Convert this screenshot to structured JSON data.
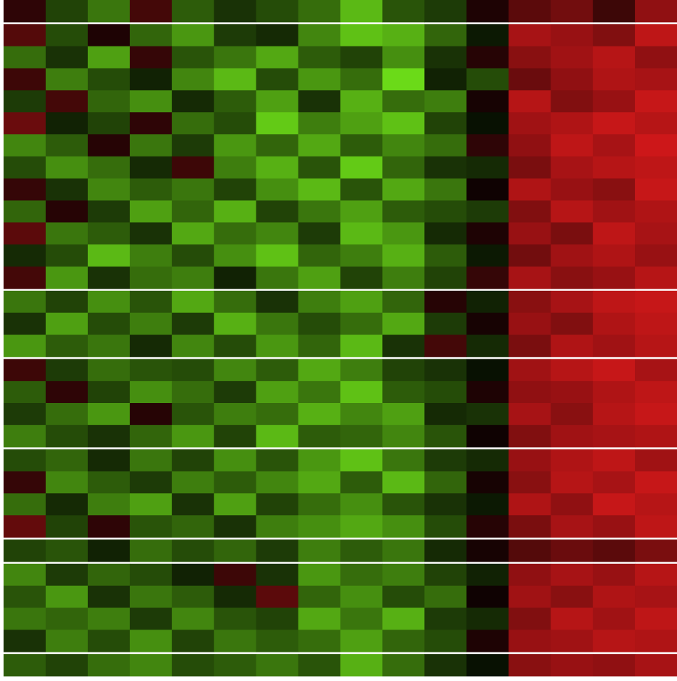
{
  "chart_data": {
    "type": "heatmap",
    "vlim": [
      -3,
      3
    ],
    "colors": {
      "low": "#7cfc1c",
      "mid": "#000000",
      "high": "#e41a1c"
    },
    "groups": [
      {
        "rows": [
          [
            0.6,
            -0.8,
            -1.4,
            0.9,
            -1.1,
            -0.6,
            -0.9,
            -1.3,
            -2.2,
            -1.0,
            -0.7,
            0.4,
            1.2,
            1.5,
            0.8,
            1.9
          ]
        ]
      },
      {
        "rows": [
          [
            1.1,
            -0.9,
            0.4,
            -1.2,
            -1.8,
            -0.7,
            -0.5,
            -1.6,
            -2.3,
            -2.1,
            -1.2,
            -0.3,
            2.2,
            2.0,
            1.7,
            2.5
          ],
          [
            -1.3,
            -0.6,
            -1.9,
            0.7,
            -1.0,
            -1.4,
            -2.0,
            -1.1,
            -0.8,
            -1.7,
            -0.6,
            0.5,
            1.8,
            2.1,
            2.4,
            1.9
          ],
          [
            0.8,
            -1.5,
            -0.9,
            -0.4,
            -1.6,
            -2.2,
            -0.9,
            -1.8,
            -1.3,
            -2.6,
            -0.4,
            -0.9,
            1.4,
            1.9,
            2.3,
            2.2
          ],
          [
            -0.7,
            0.9,
            -1.2,
            -1.7,
            -0.5,
            -1.1,
            -1.9,
            -0.6,
            -2.1,
            -1.3,
            -1.5,
            0.3,
            2.4,
            1.7,
            2.0,
            2.6
          ],
          [
            1.4,
            -0.4,
            -0.8,
            0.6,
            -1.3,
            -0.9,
            -2.4,
            -1.5,
            -1.9,
            -2.3,
            -0.8,
            -0.2,
            2.1,
            2.3,
            2.6,
            2.4
          ],
          [
            -1.6,
            -1.1,
            0.5,
            -1.4,
            -0.7,
            -1.8,
            -1.2,
            -2.0,
            -1.1,
            -1.6,
            -1.3,
            0.6,
            1.9,
            2.5,
            2.2,
            2.7
          ],
          [
            -0.9,
            -1.7,
            -1.3,
            -0.5,
            0.8,
            -1.5,
            -2.1,
            -1.0,
            -2.4,
            -1.2,
            -0.6,
            -0.5,
            1.6,
            2.2,
            2.4,
            2.5
          ],
          [
            0.7,
            -0.6,
            -1.6,
            -1.1,
            -1.4,
            -0.8,
            -1.7,
            -2.2,
            -1.0,
            -2.0,
            -1.4,
            0.2,
            2.3,
            2.0,
            1.8,
            2.6
          ],
          [
            -1.2,
            0.5,
            -0.7,
            -1.9,
            -1.2,
            -2.1,
            -0.8,
            -1.4,
            -1.9,
            -1.1,
            -0.9,
            -0.7,
            1.7,
            2.4,
            2.1,
            2.3
          ],
          [
            1.2,
            -1.4,
            -1.1,
            -0.6,
            -2.0,
            -1.3,
            -1.6,
            -0.7,
            -2.2,
            -1.8,
            -0.5,
            0.4,
            2.0,
            1.6,
            2.5,
            2.2
          ],
          [
            -0.5,
            -0.9,
            -2.2,
            -1.5,
            -0.9,
            -1.7,
            -2.3,
            -1.2,
            -1.5,
            -2.1,
            -1.1,
            -0.3,
            1.5,
            2.1,
            2.3,
            2.0
          ],
          [
            0.9,
            -1.8,
            -0.6,
            -1.3,
            -1.5,
            -0.4,
            -1.4,
            -1.9,
            -0.8,
            -1.5,
            -0.8,
            0.7,
            2.2,
            1.8,
            2.0,
            2.4
          ]
        ]
      },
      {
        "rows": [
          [
            -1.4,
            -0.8,
            -1.7,
            -1.0,
            -2.0,
            -1.3,
            -0.6,
            -1.5,
            -1.9,
            -1.2,
            0.5,
            -0.4,
            1.8,
            2.2,
            2.5,
            2.6
          ],
          [
            -0.6,
            -1.9,
            -0.9,
            -1.5,
            -0.7,
            -2.1,
            -1.4,
            -0.9,
            -1.3,
            -2.0,
            -0.7,
            0.3,
            2.0,
            1.7,
            2.3,
            2.5
          ],
          [
            -1.8,
            -1.1,
            -1.4,
            -0.5,
            -1.6,
            -0.9,
            -1.8,
            -1.2,
            -2.2,
            -0.6,
            0.9,
            -0.5,
            1.6,
            2.3,
            2.1,
            2.4
          ]
        ]
      },
      {
        "rows": [
          [
            0.8,
            -0.7,
            -1.3,
            -1.0,
            -0.9,
            -1.6,
            -1.1,
            -2.0,
            -1.5,
            -0.8,
            -0.6,
            -0.2,
            2.1,
            2.4,
            2.6,
            2.2
          ],
          [
            -1.1,
            0.6,
            -0.8,
            -1.7,
            -1.3,
            -0.7,
            -1.9,
            -1.4,
            -2.3,
            -1.1,
            -0.9,
            0.4,
            1.9,
            2.0,
            2.3,
            2.5
          ],
          [
            -0.7,
            -1.3,
            -1.8,
            0.5,
            -1.0,
            -1.5,
            -1.3,
            -2.1,
            -1.6,
            -1.9,
            -0.5,
            -0.6,
            2.2,
            1.8,
            2.4,
            2.6
          ],
          [
            -1.5,
            -0.9,
            -0.6,
            -1.2,
            -1.8,
            -0.8,
            -2.2,
            -1.1,
            -1.2,
            -1.6,
            -1.0,
            0.2,
            1.7,
            2.1,
            2.2,
            2.3
          ]
        ]
      },
      {
        "rows": [
          [
            -0.9,
            -1.2,
            -0.5,
            -1.4,
            -0.8,
            -1.7,
            -1.0,
            -1.8,
            -2.3,
            -1.4,
            -0.7,
            -0.5,
            2.0,
            2.3,
            2.5,
            2.1
          ],
          [
            0.7,
            -1.6,
            -1.1,
            -0.7,
            -1.5,
            -1.1,
            -1.6,
            -2.0,
            -1.1,
            -2.2,
            -1.2,
            0.3,
            1.8,
            2.4,
            2.2,
            2.6
          ],
          [
            -1.3,
            -0.5,
            -1.5,
            -1.9,
            -0.6,
            -1.9,
            -0.8,
            -1.3,
            -1.7,
            -1.0,
            -0.6,
            -0.3,
            2.3,
            1.9,
            2.6,
            2.4
          ],
          [
            1.3,
            -0.8,
            0.6,
            -1.0,
            -1.2,
            -0.6,
            -1.5,
            -1.7,
            -2.0,
            -1.7,
            -0.9,
            0.5,
            1.6,
            2.2,
            2.0,
            2.5
          ]
        ]
      },
      {
        "rows": [
          [
            -0.8,
            -1.0,
            -0.4,
            -1.3,
            -0.9,
            -1.2,
            -0.7,
            -1.5,
            -1.1,
            -1.4,
            -0.5,
            0.3,
            1.1,
            1.4,
            1.2,
            1.6
          ]
        ]
      },
      {
        "rows": [
          [
            -1.6,
            -0.7,
            -1.2,
            -0.9,
            -0.4,
            0.8,
            -0.6,
            -1.8,
            -1.3,
            -1.5,
            -0.8,
            -0.4,
            1.9,
            2.2,
            2.0,
            2.4
          ],
          [
            -1.0,
            -1.8,
            -0.6,
            -1.4,
            -1.1,
            -0.5,
            1.2,
            -1.2,
            -1.7,
            -0.9,
            -1.3,
            0.2,
            2.1,
            1.8,
            2.3,
            2.2
          ],
          [
            -1.4,
            -1.2,
            -1.5,
            -0.7,
            -1.6,
            -1.0,
            -0.8,
            -2.0,
            -1.4,
            -2.1,
            -0.7,
            -0.5,
            1.7,
            2.4,
            2.1,
            2.5
          ],
          [
            -0.6,
            -1.5,
            -0.9,
            -1.7,
            -0.8,
            -1.4,
            -1.1,
            -1.3,
            -1.9,
            -1.2,
            -0.9,
            0.4,
            2.0,
            2.1,
            2.4,
            2.3
          ]
        ]
      },
      {
        "rows": [
          [
            -1.1,
            -0.8,
            -1.3,
            -1.6,
            -0.9,
            -1.1,
            -1.4,
            -1.0,
            -2.1,
            -1.3,
            -0.6,
            -0.2,
            1.8,
            2.0,
            1.9,
            2.2
          ]
        ]
      }
    ]
  }
}
